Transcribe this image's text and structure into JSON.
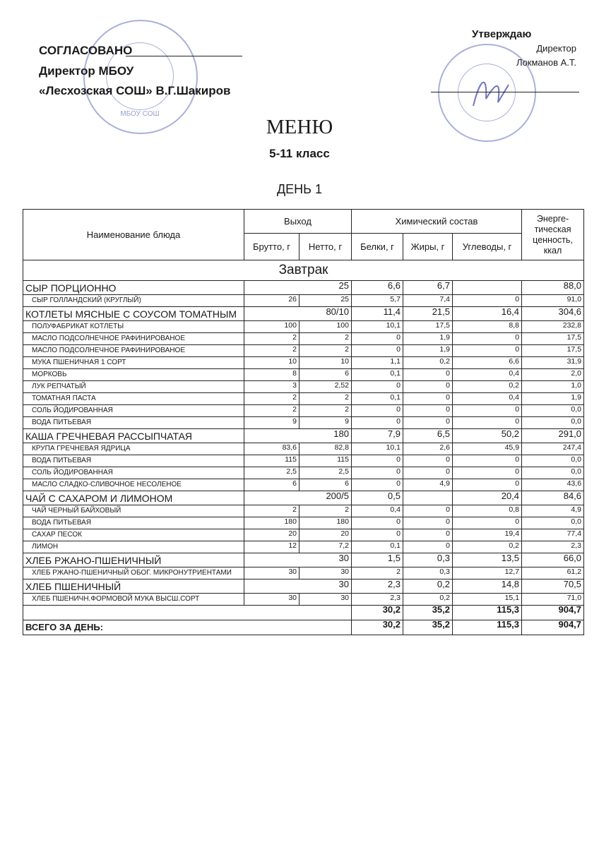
{
  "approval_left": {
    "line1": "СОГЛАСОВАНО",
    "line2": "Директор МБОУ",
    "line3": "«Лесхозская СОШ» В.Г.Шакиров"
  },
  "approval_right": {
    "line1": "Утверждаю",
    "line2": "Директор",
    "line3": "Локманов А.Т."
  },
  "stamp_left": {
    "text": "МБОУ СОШ"
  },
  "title": "МЕНЮ",
  "grade": "5-11 класс",
  "day": "ДЕНЬ 1",
  "colors": {
    "stamp": "#3c50aa",
    "ink": "#1a1a1a"
  },
  "table": {
    "headers": {
      "name": "Наименование блюда",
      "output": "Выход",
      "chem": "Химический состав",
      "energy": "Энерге-тическая ценность, ккал",
      "brutto": "Брутто, г",
      "netto": "Нетто, г",
      "protein": "Белки, г",
      "fat": "Жиры, г",
      "carbs": "Углеводы, г"
    },
    "section": "Завтрак",
    "rows": [
      {
        "type": "main",
        "name": "СЫР ПОРЦИОННО",
        "out": "25",
        "p": "6,6",
        "f": "6,7",
        "c": "",
        "e": "88,0"
      },
      {
        "type": "sub",
        "name": "СЫР ГОЛЛАНДСКИЙ (КРУГЛЫЙ)",
        "b": "26",
        "n": "25",
        "p": "5,7",
        "f": "7,4",
        "c": "0",
        "e": "91,0"
      },
      {
        "type": "main",
        "name": "КОТЛЕТЫ МЯСНЫЕ С СОУСОМ ТОМАТНЫМ",
        "out": "80/10",
        "p": "11,4",
        "f": "21,5",
        "c": "16,4",
        "e": "304,6"
      },
      {
        "type": "sub",
        "name": "ПОЛУФАБРИКАТ КОТЛЕТЫ",
        "b": "100",
        "n": "100",
        "p": "10,1",
        "f": "17,5",
        "c": "8,8",
        "e": "232,8"
      },
      {
        "type": "sub",
        "name": "МАСЛО ПОДСОЛНЕЧНОЕ РАФИНИРОВАНОЕ",
        "b": "2",
        "n": "2",
        "p": "0",
        "f": "1,9",
        "c": "0",
        "e": "17,5"
      },
      {
        "type": "sub",
        "name": "МАСЛО ПОДСОЛНЕЧНОЕ РАФИНИРОВАНОЕ",
        "b": "2",
        "n": "2",
        "p": "0",
        "f": "1,9",
        "c": "0",
        "e": "17,5"
      },
      {
        "type": "sub",
        "name": "МУКА ПШЕНИЧНАЯ 1 СОРТ",
        "b": "10",
        "n": "10",
        "p": "1,1",
        "f": "0,2",
        "c": "6,6",
        "e": "31,9"
      },
      {
        "type": "sub",
        "name": "МОРКОВЬ",
        "b": "8",
        "n": "6",
        "p": "0,1",
        "f": "0",
        "c": "0,4",
        "e": "2,0"
      },
      {
        "type": "sub",
        "name": "ЛУК РЕПЧАТЫЙ",
        "b": "3",
        "n": "2,52",
        "p": "0",
        "f": "0",
        "c": "0,2",
        "e": "1,0"
      },
      {
        "type": "sub",
        "name": "ТОМАТНАЯ ПАСТА",
        "b": "2",
        "n": "2",
        "p": "0,1",
        "f": "0",
        "c": "0,4",
        "e": "1,9"
      },
      {
        "type": "sub",
        "name": "СОЛЬ ЙОДИРОВАННАЯ",
        "b": "2",
        "n": "2",
        "p": "0",
        "f": "0",
        "c": "0",
        "e": "0,0"
      },
      {
        "type": "sub",
        "name": "ВОДА ПИТЬЕВАЯ",
        "b": "9",
        "n": "9",
        "p": "0",
        "f": "0",
        "c": "0",
        "e": "0,0"
      },
      {
        "type": "main",
        "name": "КАША ГРЕЧНЕВАЯ РАССЫПЧАТАЯ",
        "out": "180",
        "p": "7,9",
        "f": "6,5",
        "c": "50,2",
        "e": "291,0"
      },
      {
        "type": "sub",
        "name": "КРУПА ГРЕЧНЕВАЯ ЯДРИЦА",
        "b": "83,6",
        "n": "82,8",
        "p": "10,1",
        "f": "2,6",
        "c": "45,9",
        "e": "247,4"
      },
      {
        "type": "sub",
        "name": "ВОДА ПИТЬЕВАЯ",
        "b": "115",
        "n": "115",
        "p": "0",
        "f": "0",
        "c": "0",
        "e": "0,0"
      },
      {
        "type": "sub",
        "name": "СОЛЬ ЙОДИРОВАННАЯ",
        "b": "2,5",
        "n": "2,5",
        "p": "0",
        "f": "0",
        "c": "0",
        "e": "0,0"
      },
      {
        "type": "sub",
        "name": "МАСЛО СЛАДКО-СЛИВОЧНОЕ НЕСОЛЕНОЕ",
        "b": "6",
        "n": "6",
        "p": "0",
        "f": "4,9",
        "c": "0",
        "e": "43,6"
      },
      {
        "type": "main",
        "name": "ЧАЙ С САХАРОМ И ЛИМОНОМ",
        "out": "200/5",
        "p": "0,5",
        "f": "",
        "c": "20,4",
        "e": "84,6"
      },
      {
        "type": "sub",
        "name": "ЧАЙ ЧЕРНЫЙ БАЙХОВЫЙ",
        "b": "2",
        "n": "2",
        "p": "0,4",
        "f": "0",
        "c": "0,8",
        "e": "4,9"
      },
      {
        "type": "sub",
        "name": "ВОДА ПИТЬЕВАЯ",
        "b": "180",
        "n": "180",
        "p": "0",
        "f": "0",
        "c": "0",
        "e": "0,0"
      },
      {
        "type": "sub",
        "name": "САХАР ПЕСОК",
        "b": "20",
        "n": "20",
        "p": "0",
        "f": "0",
        "c": "19,4",
        "e": "77,4"
      },
      {
        "type": "sub",
        "name": "ЛИМОН",
        "b": "12",
        "n": "7,2",
        "p": "0,1",
        "f": "0",
        "c": "0,2",
        "e": "2,3"
      },
      {
        "type": "main",
        "name": "ХЛЕБ РЖАНО-ПШЕНИЧНЫЙ",
        "out": "30",
        "p": "1,5",
        "f": "0,3",
        "c": "13,5",
        "e": "66,0"
      },
      {
        "type": "sub",
        "name": "ХЛЕБ РЖАНО-ПШЕНИЧНЫЙ ОБОГ. МИКРОНУТРИЕНТАМИ",
        "b": "30",
        "n": "30",
        "p": "2",
        "f": "0,3",
        "c": "12,7",
        "e": "61,2"
      },
      {
        "type": "main",
        "name": "ХЛЕБ ПШЕНИЧНЫЙ",
        "out": "30",
        "p": "2,3",
        "f": "0,2",
        "c": "14,8",
        "e": "70,5"
      },
      {
        "type": "sub",
        "name": "ХЛЕБ ПШЕНИЧН.ФОРМОВОЙ МУКА ВЫСШ.СОРТ",
        "b": "30",
        "n": "30",
        "p": "2,3",
        "f": "0,2",
        "c": "15,1",
        "e": "71,0"
      },
      {
        "type": "total",
        "name": "",
        "p": "30,2",
        "f": "35,2",
        "c": "115,3",
        "e": "904,7"
      },
      {
        "type": "total",
        "name": "ВСЕГО ЗА ДЕНЬ:",
        "p": "30,2",
        "f": "35,2",
        "c": "115,3",
        "e": "904,7"
      }
    ]
  }
}
